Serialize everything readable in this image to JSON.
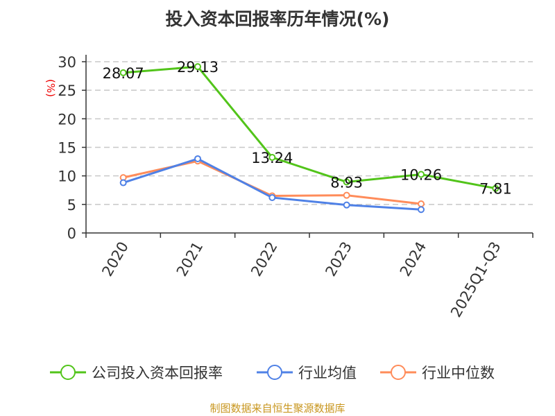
{
  "title": "投入资本回报率历年情况(%)",
  "source": "制图数据来自恒生聚源数据库",
  "chart_data": {
    "type": "line",
    "title": "投入资本回报率历年情况(%)",
    "ylabel": "(%)",
    "xlabel": "",
    "ylim": [
      0,
      30
    ],
    "yticks": [
      0,
      5,
      10,
      15,
      20,
      25,
      30
    ],
    "grid": true,
    "legend_position": "bottom",
    "categories": [
      "2020",
      "2021",
      "2022",
      "2023",
      "2024",
      "2025Q1-Q3"
    ],
    "series": [
      {
        "name": "公司投入资本回报率",
        "color": "#52c41a",
        "values": [
          28.07,
          29.13,
          13.24,
          8.93,
          10.26,
          7.81
        ],
        "labels": [
          "28.07",
          "29.13",
          "13.24",
          "8.93",
          "10.26",
          "7.81"
        ]
      },
      {
        "name": "行业均值",
        "color": "#4f81e6",
        "values": [
          8.8,
          13.0,
          6.2,
          4.9,
          4.1,
          null
        ]
      },
      {
        "name": "行业中位数",
        "color": "#ff8c5a",
        "values": [
          9.7,
          12.6,
          6.5,
          6.6,
          5.1,
          null
        ]
      }
    ]
  }
}
